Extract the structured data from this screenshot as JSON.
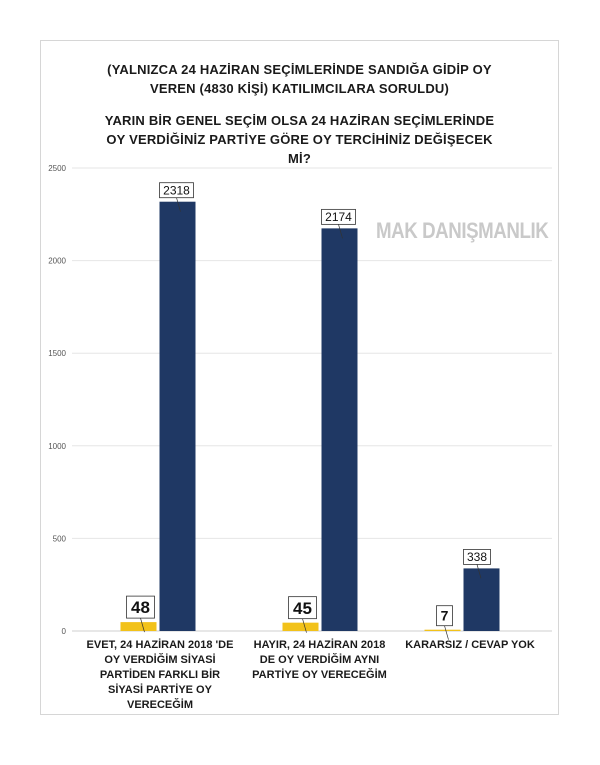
{
  "title_lines": [
    "(YALNIZCA 24 HAZİRAN SEÇİMLERİNDE SANDIĞA GİDİP OY",
    "VEREN (4830 KİŞİ) KATILIMCILARA SORULDU)",
    "YARIN BİR GENEL SEÇİM OLSA 24 HAZİRAN SEÇİMLERİNDE",
    "OY VERDİĞİNİZ PARTİYE GÖRE OY TERCİHİNİZ DEĞİŞECEK",
    "Mİ?"
  ],
  "watermark": "MAK DANIŞMANLIK",
  "colors": {
    "yellow": "#F2C21A",
    "navy": "#1F3864",
    "grid": "#e6e6e6",
    "axis_text": "#555555"
  },
  "chart_data": {
    "type": "bar",
    "title": "YARIN BİR GENEL SEÇİM OLSA 24 HAZİRAN SEÇİMLERİNDE OY VERDİĞİNİZ PARTİYE GÖRE OY TERCİHİNİZ DEĞİŞECEK Mİ?",
    "subtitle": "(YALNIZCA 24 HAZİRAN SEÇİMLERİNDE SANDIĞA GİDİP OY VEREN (4830 KİŞİ) KATILIMCILARA SORULDU)",
    "categories": [
      "EVET, 24 HAZİRAN 2018 'DE\nOY VERDİĞİM SİYASİ\nPARTİDEN FARKLI BİR\nSİYASİ PARTİYE OY\nVERECEĞİM",
      "HAYIR, 24 HAZİRAN 2018\nDE OY VERDİĞİM AYNI\nPARTİYE OY VERECEĞİM",
      "KARARSIZ / CEVAP YOK"
    ],
    "series": [
      {
        "values": [
          48,
          45,
          7
        ],
        "color": "#F2C21A"
      },
      {
        "values": [
          2318,
          2174,
          338
        ],
        "color": "#1F3864"
      }
    ],
    "ylim": [
      0,
      2500
    ],
    "yticks": [
      "0",
      "500",
      "1000",
      "1500",
      "2000",
      "2500"
    ],
    "grid": true
  }
}
